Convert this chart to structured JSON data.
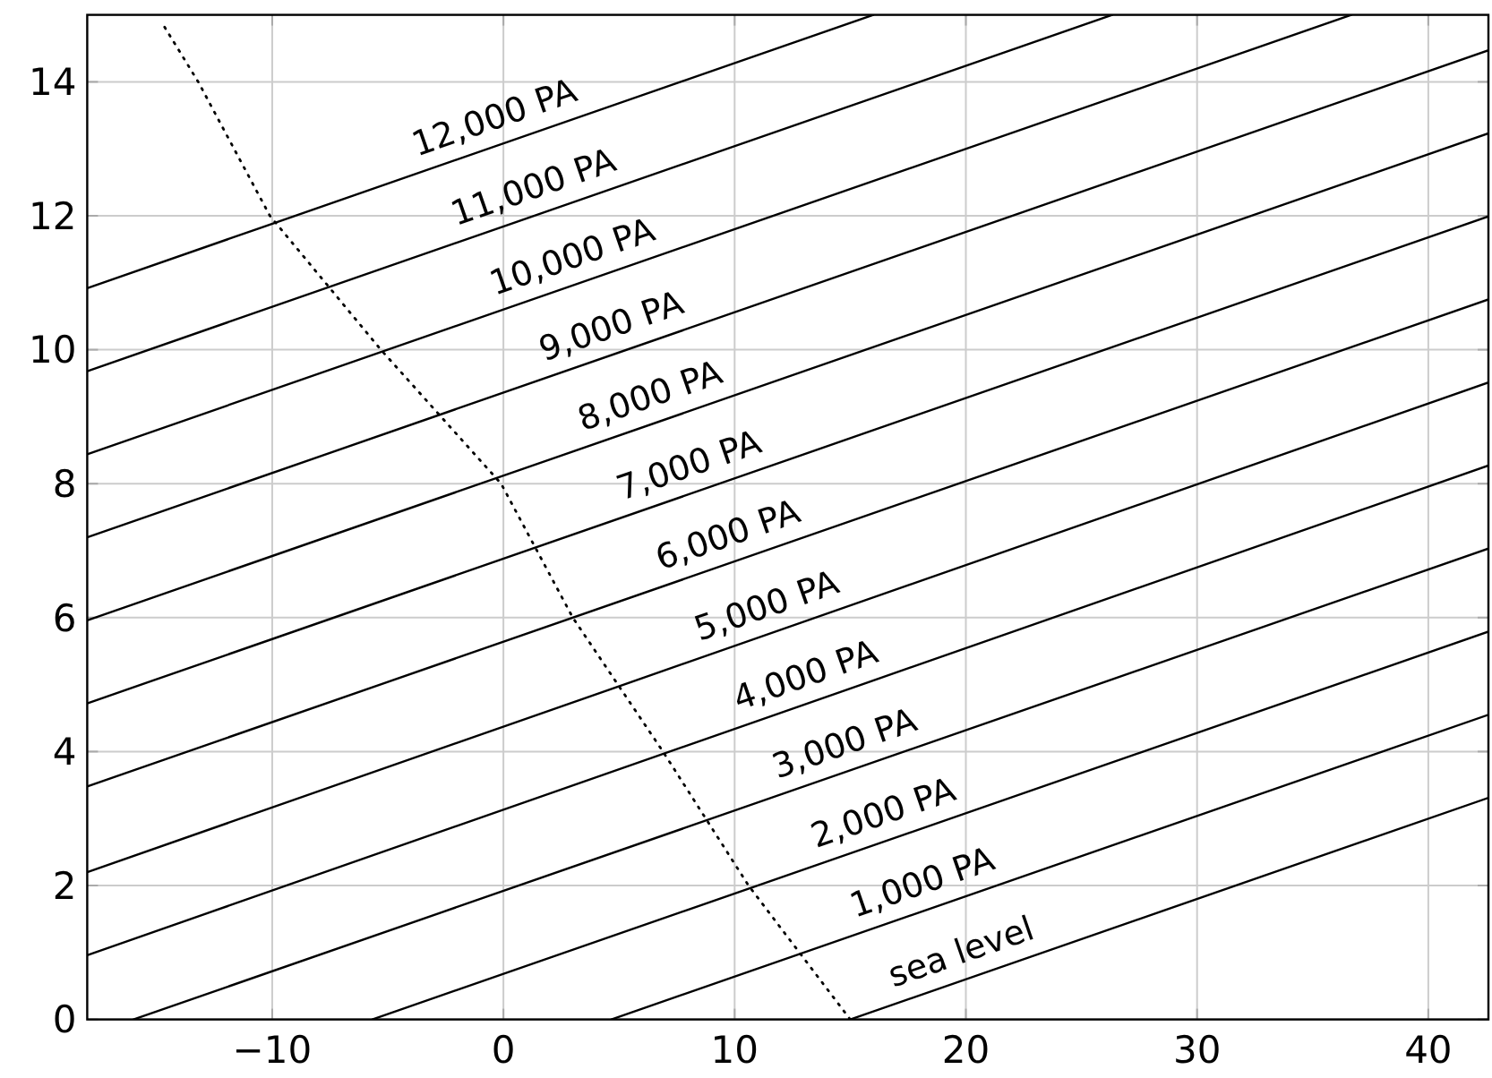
{
  "chart_data": {
    "type": "line",
    "xlim": [
      -18,
      42.6
    ],
    "ylim": [
      0,
      15
    ],
    "xticks": [
      {
        "value": -10,
        "label": "−10"
      },
      0,
      10,
      20,
      30,
      40
    ],
    "yticks": [
      0,
      2,
      4,
      6,
      8,
      10,
      12,
      14
    ],
    "grid": true,
    "marker": "none",
    "line_style": "solid",
    "series": [
      {
        "name": "sea level",
        "color": "#000000",
        "x": [
          15,
          42.6
        ],
        "values": [
          0,
          3.31
        ]
      },
      {
        "name": "1,000 PA",
        "color": "#000000",
        "x": [
          4.67,
          42.6
        ],
        "values": [
          0,
          4.55
        ]
      },
      {
        "name": "2,000 PA",
        "color": "#000000",
        "x": [
          -5.67,
          42.6
        ],
        "values": [
          0,
          5.79
        ]
      },
      {
        "name": "3,000 PA",
        "color": "#000000",
        "x": [
          -16,
          42.6
        ],
        "values": [
          0,
          7.03
        ]
      },
      {
        "name": "4,000 PA",
        "color": "#000000",
        "x": [
          -18,
          42.6
        ],
        "values": [
          0.96,
          8.27
        ]
      },
      {
        "name": "5,000 PA",
        "color": "#000000",
        "x": [
          -18,
          42.6
        ],
        "values": [
          2.2,
          9.51
        ]
      },
      {
        "name": "6,000 PA",
        "color": "#000000",
        "x": [
          -18,
          42.6
        ],
        "values": [
          3.48,
          10.75
        ]
      },
      {
        "name": "7,000 PA",
        "color": "#000000",
        "x": [
          -18,
          42.6
        ],
        "values": [
          4.72,
          11.99
        ]
      },
      {
        "name": "8,000 PA",
        "color": "#000000",
        "x": [
          -18,
          42.6
        ],
        "values": [
          5.96,
          13.23
        ]
      },
      {
        "name": "9,000 PA",
        "color": "#000000",
        "x": [
          -18,
          42.6
        ],
        "values": [
          7.2,
          14.47
        ]
      },
      {
        "name": "10,000 PA",
        "color": "#000000",
        "x": [
          -18,
          36.67
        ],
        "values": [
          8.44,
          15
        ]
      },
      {
        "name": "11,000 PA",
        "color": "#000000",
        "x": [
          -18,
          26.33
        ],
        "values": [
          9.68,
          15
        ]
      },
      {
        "name": "12,000 PA",
        "color": "#000000",
        "x": [
          -18,
          16
        ],
        "values": [
          10.92,
          15
        ]
      },
      {
        "color": "#000000",
        "line_style": "dotted",
        "x": [
          15,
          10.6,
          6.9,
          3,
          -0.1,
          -5.3,
          -10.1,
          -13.2,
          -14.8
        ],
        "values": [
          0,
          2,
          4,
          6,
          8,
          10,
          12,
          14,
          14.9
        ]
      }
    ]
  }
}
